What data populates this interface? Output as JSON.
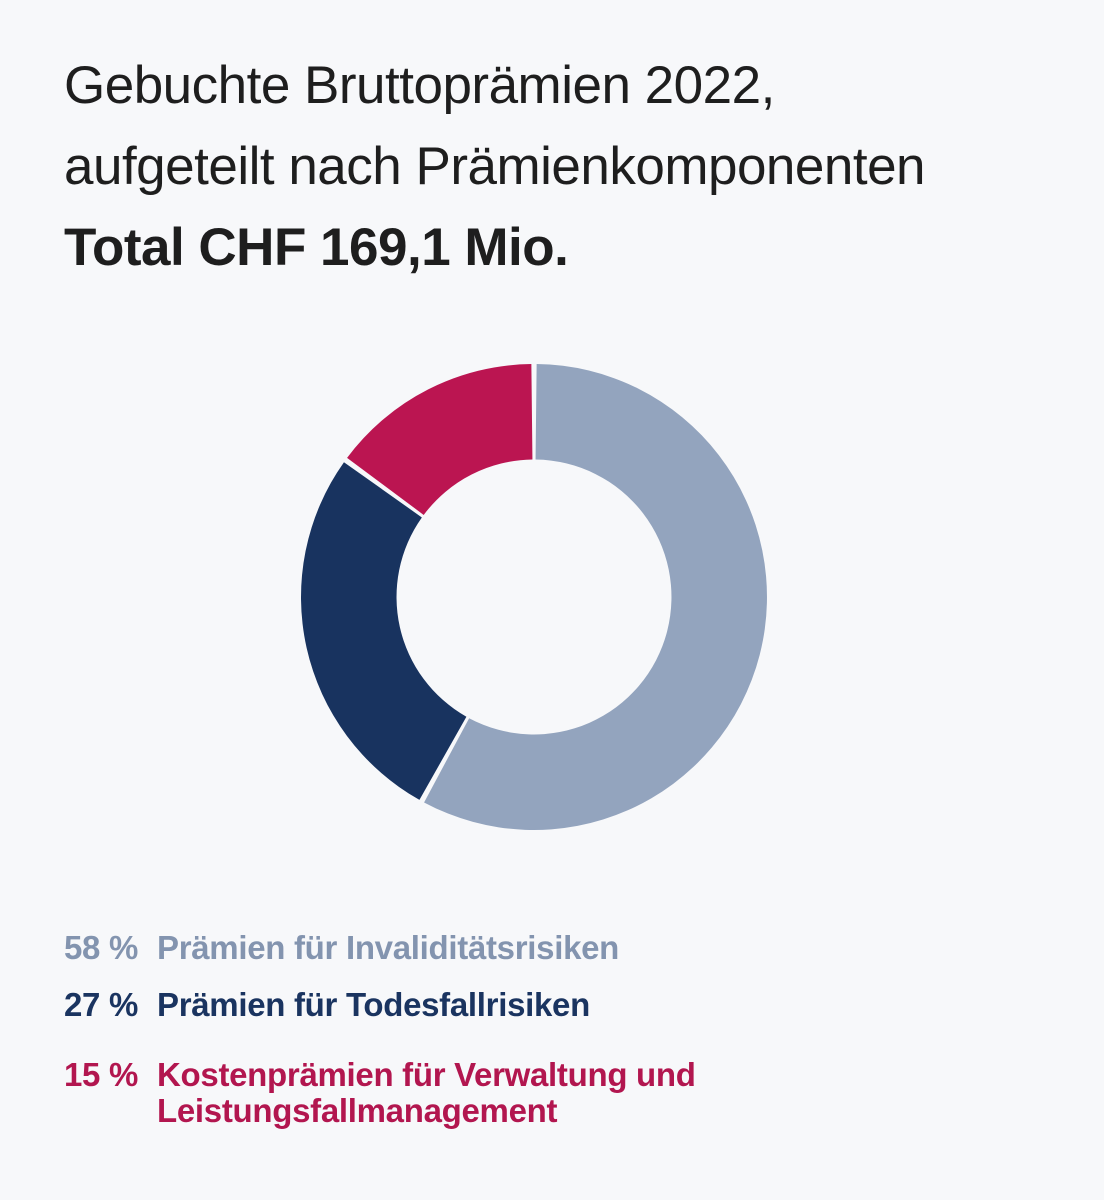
{
  "background_color": "#F7F8FA",
  "title": {
    "line1": "Gebuchte Bruttoprämien 2022,",
    "line2": "aufgeteilt nach Prämienkomponenten",
    "total_line": "Total CHF 169,1 Mio.",
    "color": "#1E1E1E"
  },
  "chart_data": {
    "type": "pie",
    "subtype": "donut",
    "title": "Gebuchte Bruttoprämien 2022, aufgeteilt nach Prämienkomponenten",
    "total_label": "Total CHF 169,1 Mio.",
    "total_value_chf_mio": 169.1,
    "unit": "%",
    "start_angle_deg": 0,
    "direction": "clockwise",
    "inner_radius_ratio": 0.59,
    "outer_radius_px": 233,
    "gap_pad_deg": 0.65,
    "legend_position": "bottom-left",
    "slices": [
      {
        "label": "Prämien für Invaliditätsrisiken",
        "value": 58,
        "color": "#93A4BE"
      },
      {
        "label": "Prämien für Todesfallrisiken",
        "value": 27,
        "color": "#18335F"
      },
      {
        "label": "Kostenprämien für Verwaltung und Leistungsfallmanagement",
        "value": 15,
        "color": "#BB1551"
      }
    ]
  },
  "legend": {
    "items": [
      {
        "pct": "58 %",
        "label": "Prämien für Invaliditätsrisiken",
        "color": "#8394AF"
      },
      {
        "pct": "27 %",
        "label": "Prämien für Todesfallrisiken",
        "color": "#1A3460"
      },
      {
        "pct": "15 %",
        "label": "Kostenprämien für Verwaltung und\nLeistungsfallmanagement",
        "color": "#B2164F"
      }
    ]
  }
}
